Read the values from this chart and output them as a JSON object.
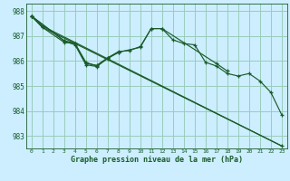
{
  "bg_color": "#cceeff",
  "grid_color": "#99ccbb",
  "line_color": "#1a5c2a",
  "xlabel": "Graphe pression niveau de la mer (hPa)",
  "xlim": [
    -0.5,
    23.5
  ],
  "ylim": [
    982.5,
    988.3
  ],
  "yticks": [
    983,
    984,
    985,
    986,
    987,
    988
  ],
  "xticks": [
    0,
    1,
    2,
    3,
    4,
    5,
    6,
    7,
    8,
    9,
    10,
    11,
    12,
    13,
    14,
    15,
    16,
    17,
    18,
    19,
    20,
    21,
    22,
    23
  ],
  "series": [
    [
      987.8,
      987.4,
      null,
      null,
      null,
      null,
      null,
      null,
      null,
      null,
      null,
      null,
      null,
      null,
      null,
      null,
      null,
      null,
      null,
      null,
      null,
      null,
      null,
      982.6
    ],
    [
      987.8,
      987.35,
      null,
      986.75,
      986.7,
      985.95,
      985.8,
      986.1,
      986.35,
      null,
      986.55,
      987.3,
      987.3,
      986.85,
      986.7,
      986.65,
      985.95,
      985.8,
      985.5,
      985.4,
      985.5,
      985.2,
      984.75,
      983.85
    ],
    [
      987.8,
      null,
      null,
      986.8,
      986.65,
      985.85,
      985.78,
      986.12,
      986.35,
      null,
      null,
      null,
      null,
      null,
      null,
      null,
      null,
      null,
      null,
      null,
      null,
      null,
      null,
      null
    ],
    [
      987.8,
      null,
      null,
      986.82,
      986.7,
      985.9,
      985.83,
      986.13,
      986.38,
      986.42,
      986.58,
      987.3,
      987.3,
      null,
      null,
      null,
      null,
      985.9,
      985.6,
      null,
      null,
      null,
      null,
      null
    ]
  ]
}
